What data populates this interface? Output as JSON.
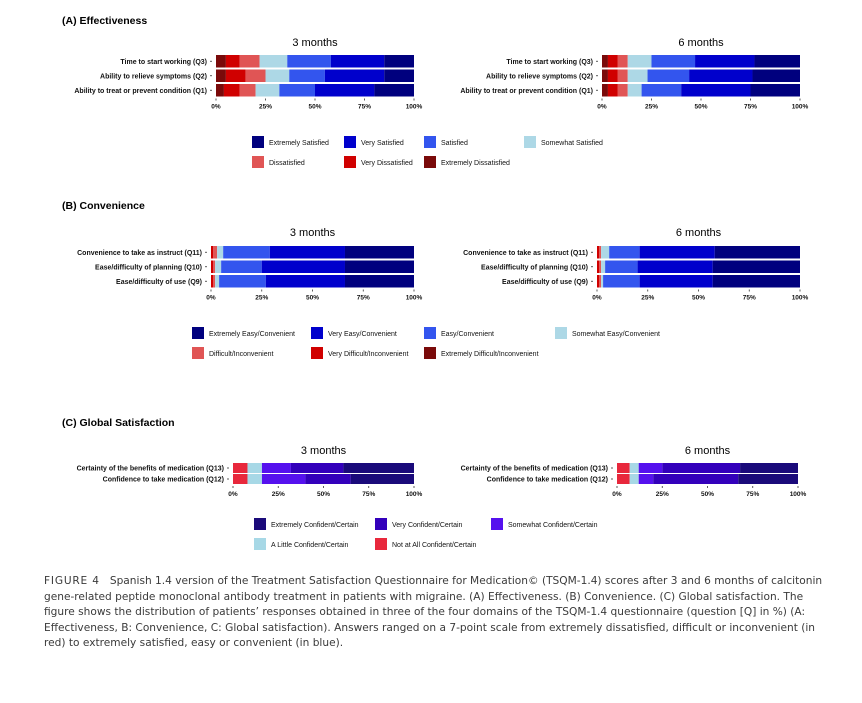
{
  "chart_data": [
    {
      "type": "bar",
      "stacked": "horizontal",
      "panel": "(A) Effectiveness",
      "timepoints": [
        "3 months",
        "6 months"
      ],
      "categories": [
        "Time to start working (Q3)",
        "Ability to relieve symptoms (Q2)",
        "Ability to treat or prevent condition (Q1)"
      ],
      "xticks": [
        "0%",
        "25%",
        "50%",
        "75%",
        "100%"
      ],
      "legend": [
        "Extremely Satisfied",
        "Very Satisfied",
        "Satisfied",
        "Somewhat Satisfied",
        "Dissatisfied",
        "Very Dissatisfied",
        "Extremely Dissatisfied"
      ],
      "stack_order": [
        "Extremely Dissatisfied",
        "Very Dissatisfied",
        "Dissatisfied",
        "Somewhat Satisfied",
        "Satisfied",
        "Very Satisfied",
        "Extremely Satisfied"
      ],
      "colors": [
        "#7a0a0a",
        "#d00000",
        "#e05555",
        "#add8e6",
        "#3355ee",
        "#0000cc",
        "#00007e"
      ],
      "series": {
        "3 months": [
          [
            5,
            7,
            10,
            14,
            22,
            27,
            15
          ],
          [
            5,
            10,
            10,
            12,
            18,
            30,
            15
          ],
          [
            4,
            8,
            8,
            12,
            18,
            30,
            20
          ]
        ],
        "6 months": [
          [
            3,
            5,
            5,
            12,
            22,
            30,
            23
          ],
          [
            3,
            5,
            5,
            10,
            21,
            32,
            24
          ],
          [
            3,
            5,
            5,
            7,
            20,
            35,
            25
          ]
        ]
      }
    },
    {
      "type": "bar",
      "stacked": "horizontal",
      "panel": "(B) Convenience",
      "timepoints": [
        "3 months",
        "6 months"
      ],
      "categories": [
        "Convenience to take as instruct (Q11)",
        "Ease/difficulty of planning (Q10)",
        "Ease/difficulty of use (Q9)"
      ],
      "xticks": [
        "0%",
        "25%",
        "50%",
        "75%",
        "100%"
      ],
      "legend": [
        "Extremely Easy/Convenient",
        "Very Easy/Convenient",
        "Easy/Convenient",
        "Somewhat Easy/Convenient",
        "Difficult/Inconvenient",
        "Very Difficult/Inconvenient",
        "Extremely Difficult/Inconvenient"
      ],
      "stack_order": [
        "Extremely Difficult/Inconvenient",
        "Very Difficult/Inconvenient",
        "Difficult/Inconvenient",
        "Somewhat Easy/Convenient",
        "Easy/Convenient",
        "Very Easy/Convenient",
        "Extremely Easy/Convenient"
      ],
      "colors": [
        "#7a0a0a",
        "#d00000",
        "#e05555",
        "#add8e6",
        "#3355ee",
        "#0000cc",
        "#00007e"
      ],
      "series": {
        "3 months": [
          [
            0,
            1,
            2,
            3,
            23,
            37,
            34
          ],
          [
            0,
            1,
            1,
            3,
            20,
            41,
            34
          ],
          [
            0,
            1,
            1,
            2,
            23,
            39,
            34
          ]
        ],
        "6 months": [
          [
            0,
            1,
            1,
            4,
            15,
            37,
            42
          ],
          [
            0,
            1,
            1,
            2,
            16,
            37,
            43
          ],
          [
            0,
            1,
            1,
            1,
            18,
            36,
            43
          ]
        ]
      }
    },
    {
      "type": "bar",
      "stacked": "horizontal",
      "panel": "(C) Global Satisfaction",
      "timepoints": [
        "3 months",
        "6 months"
      ],
      "categories": [
        "Certainty of the benefits of medication (Q13)",
        "Confidence to take medication (Q12)"
      ],
      "xticks": [
        "0%",
        "25%",
        "50%",
        "75%",
        "100%"
      ],
      "legend": [
        "Extremely Confident/Certain",
        "Very Confident/Certain",
        "Somewhat Confident/Certain",
        "A Little Confident/Certain",
        "Not at All Confident/Certain"
      ],
      "stack_order": [
        "Not at All Confident/Certain",
        "A Little Confident/Certain",
        "Somewhat Confident/Certain",
        "Very Confident/Certain",
        "Extremely Confident/Certain"
      ],
      "colors": [
        "#e8283c",
        "#a7d8e6",
        "#5511ee",
        "#3300bb",
        "#1a0a7a"
      ],
      "series": {
        "3 months": [
          [
            8,
            8,
            16,
            29,
            39
          ],
          [
            8,
            8,
            24,
            25,
            35
          ]
        ],
        "6 months": [
          [
            7,
            5,
            13,
            43,
            32
          ],
          [
            7,
            5,
            8,
            47,
            33
          ]
        ]
      }
    }
  ],
  "caption": {
    "lead": "FIGURE 4",
    "text": "Spanish 1.4 version of the Treatment Satisfaction Questionnaire for Medication© (TSQM-1.4) scores after 3 and 6 months of calcitonin gene-related peptide monoclonal antibody treatment in patients with migraine. (A) Effectiveness. (B) Convenience. (C) Global satisfaction. The figure shows the distribution of patients’ responses obtained in three of the four domains of the TSQM-1.4 questionnaire (question [Q] in %) (A: Effectiveness, B: Convenience, C: Global satisfaction). Answers ranged on a 7-point scale from extremely dissatisfied, difficult or inconvenient (in red) to extremely satisfied, easy or convenient (in blue)."
  }
}
